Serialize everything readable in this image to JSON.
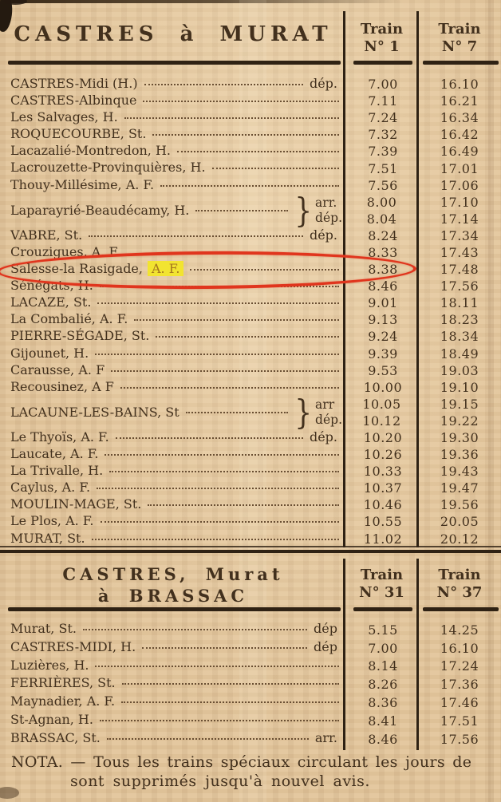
{
  "colors": {
    "paper": "#e3c69c",
    "ink": "#42301d",
    "rule": "#2f2214",
    "red": "#e0351d",
    "yellow": "#f2e430"
  },
  "glyphs": {
    "brace": "}"
  },
  "table1": {
    "title": "CASTRES à MURAT",
    "columns": [
      {
        "line1": "Train",
        "line2": "N° 1"
      },
      {
        "line1": "Train",
        "line2": "N° 7"
      }
    ],
    "rows": [
      {
        "name": "CASTRES-Midi (H.)",
        "suffix": "dép.",
        "t1": "7.00",
        "t2": "16.10"
      },
      {
        "name": "CASTRES-Albinque",
        "t1": "7.11",
        "t2": "16.21"
      },
      {
        "name": "Les Salvages, H.",
        "t1": "7.24",
        "t2": "16.34"
      },
      {
        "name": "ROQUECOURBE, St.",
        "t1": "7.32",
        "t2": "16.42"
      },
      {
        "name": "Lacazalié-Montredon, H.",
        "t1": "7.39",
        "t2": "16.49"
      },
      {
        "name": "Lacrouzette-Provinquières, H.",
        "t1": "7.51",
        "t2": "17.01"
      },
      {
        "name": "Thouy-Millésime, A. F.",
        "t1": "7.56",
        "t2": "17.06"
      },
      {
        "name": "Laparayrié-Beaudécamy, H.",
        "double": true,
        "sub": [
          "arr.",
          "dép."
        ],
        "t1": [
          "8.00",
          "8.04"
        ],
        "t2": [
          "17.10",
          "17.14"
        ]
      },
      {
        "name": "VABRE, St.",
        "suffix": "dép.",
        "t1": "8.24",
        "t2": "17.34"
      },
      {
        "name": "Crouzigues, A. F",
        "leader": false,
        "t1": "8.33",
        "t2": "17.43"
      },
      {
        "name": "Salesse-la Rasigade,",
        "highlight": "A. F.",
        "t1": "8.38",
        "t2": "17.48"
      },
      {
        "name": "Sénégats, H.",
        "t1": "8.46",
        "t2": "17.56"
      },
      {
        "name": "LACAZE, St.",
        "t1": "9.01",
        "t2": "18.11"
      },
      {
        "name": "La Combalié, A. F.",
        "t1": "9.13",
        "t2": "18.23"
      },
      {
        "name": "PIERRE-SÉGADE, St.",
        "t1": "9.24",
        "t2": "18.34"
      },
      {
        "name": "Gijounet, H.",
        "t1": "9.39",
        "t2": "18.49"
      },
      {
        "name": "Carausse, A. F",
        "t1": "9.53",
        "t2": "19.03"
      },
      {
        "name": "Recousinez, A F",
        "t1": "10.00",
        "t2": "19.10"
      },
      {
        "name": "LACAUNE-LES-BAINS, St",
        "double": true,
        "sub": [
          "arr",
          "dép."
        ],
        "t1": [
          "10.05",
          "10.12"
        ],
        "t2": [
          "19.15",
          "19.22"
        ]
      },
      {
        "name": "Le Thyoïs, A. F.",
        "suffix": "dép.",
        "t1": "10.20",
        "t2": "19.30"
      },
      {
        "name": "Laucate, A. F.",
        "t1": "10.26",
        "t2": "19.36"
      },
      {
        "name": "La Trivalle, H.",
        "t1": "10.33",
        "t2": "19.43"
      },
      {
        "name": "Caylus, A. F.",
        "t1": "10.37",
        "t2": "19.47"
      },
      {
        "name": "MOULIN-MAGE, St.",
        "t1": "10.46",
        "t2": "19.56"
      },
      {
        "name": "Le Plos, A. F.",
        "t1": "10.55",
        "t2": "20.05"
      },
      {
        "name": "MURAT, St.",
        "t1": "11.02",
        "t2": "20.12"
      }
    ]
  },
  "table2": {
    "title_line1": "CASTRES, Murat",
    "title_line2": "à BRASSAC",
    "columns": [
      {
        "line1": "Train",
        "line2": "N° 31"
      },
      {
        "line1": "Train",
        "line2": "N° 37"
      }
    ],
    "rows": [
      {
        "name": "Murat, St.",
        "suffix": "dép",
        "t1": "5.15",
        "t2": "14.25"
      },
      {
        "name": "CASTRES-MIDI, H.",
        "suffix": "dép",
        "t1": "7.00",
        "t2": "16.10"
      },
      {
        "name": "Luzières, H.",
        "t1": "8.14",
        "t2": "17.24"
      },
      {
        "name": "FERRIÈRES, St.",
        "t1": "8.26",
        "t2": "17.36"
      },
      {
        "name": "Maynadier, A. F.",
        "t1": "8.36",
        "t2": "17.46"
      },
      {
        "name": "St-Agnan, H.",
        "t1": "8.41",
        "t2": "17.51"
      },
      {
        "name": "BRASSAC, St.",
        "suffix": "arr.",
        "t1": "8.46",
        "t2": "17.56"
      }
    ]
  },
  "annotation": {
    "highlighted_station": "Salesse-la Rasigade, A. F.",
    "highlighted_times": [
      "8.38",
      "17.48"
    ],
    "marks": "red ellipse around row, yellow highlight on A. F."
  },
  "nota": {
    "line1": "NOTA. — Tous les trains spéciaux circulant les jours de",
    "line2": "sont supprimés jusqu'à nouvel avis."
  }
}
